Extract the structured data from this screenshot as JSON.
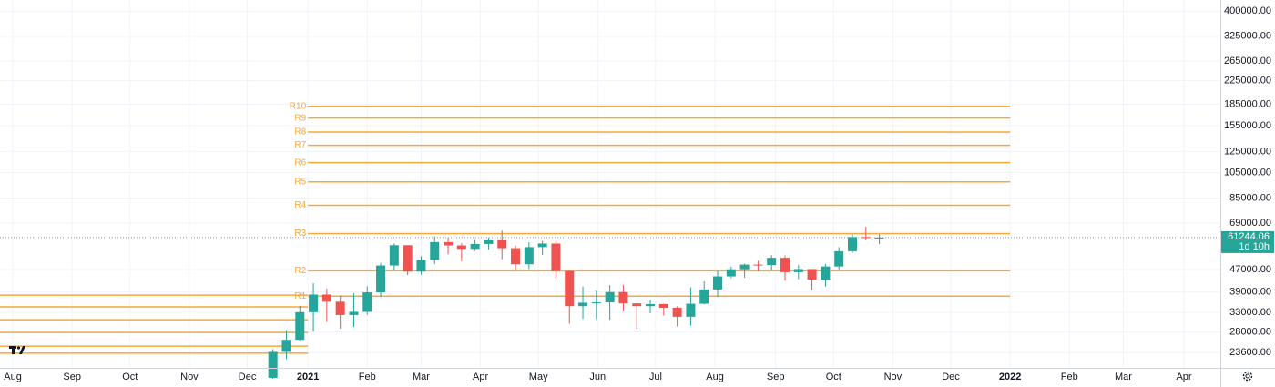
{
  "chart_data": {
    "type": "candlestick",
    "log_scale": true,
    "grid": true,
    "up_color": "#26a69a",
    "down_color": "#ef5350",
    "pivot_color": "#f6a83c",
    "ylim": [
      20800,
      439000
    ],
    "yticks": [
      {
        "value": 400000,
        "label": "400000.00"
      },
      {
        "value": 325000,
        "label": "325000.00"
      },
      {
        "value": 265000,
        "label": "265000.00"
      },
      {
        "value": 225000,
        "label": "225000.00"
      },
      {
        "value": 185000,
        "label": "185000.00"
      },
      {
        "value": 155000,
        "label": "155000.00"
      },
      {
        "value": 125000,
        "label": "125000.00"
      },
      {
        "value": 105000,
        "label": "105000.00"
      },
      {
        "value": 85000,
        "label": "85000.00"
      },
      {
        "value": 69000,
        "label": "69000.00"
      },
      {
        "value": 47000,
        "label": "47000.00"
      },
      {
        "value": 39000,
        "label": "39000.00"
      },
      {
        "value": 33000,
        "label": "33000.00"
      },
      {
        "value": 28000,
        "label": "28000.00"
      },
      {
        "value": 23600,
        "label": "23600.00"
      }
    ],
    "xlim": [
      -0.95,
      89.6
    ],
    "xticks": [
      {
        "value": 0,
        "label": "Aug"
      },
      {
        "value": 4.4,
        "label": "Sep"
      },
      {
        "value": 8.7,
        "label": "Oct"
      },
      {
        "value": 13.1,
        "label": "Nov"
      },
      {
        "value": 17.4,
        "label": "Dec"
      },
      {
        "value": 21.9,
        "label": "2021"
      },
      {
        "value": 26.3,
        "label": "Feb"
      },
      {
        "value": 30.3,
        "label": "Mar"
      },
      {
        "value": 34.7,
        "label": "Apr"
      },
      {
        "value": 39,
        "label": "May"
      },
      {
        "value": 43.4,
        "label": "Jun"
      },
      {
        "value": 47.7,
        "label": "Jul"
      },
      {
        "value": 52.1,
        "label": "Aug"
      },
      {
        "value": 56.6,
        "label": "Sep"
      },
      {
        "value": 60.9,
        "label": "Oct"
      },
      {
        "value": 65.3,
        "label": "Nov"
      },
      {
        "value": 69.6,
        "label": "Dec"
      },
      {
        "value": 74,
        "label": "2022"
      },
      {
        "value": 78.4,
        "label": "Feb"
      },
      {
        "value": 82.4,
        "label": "Mar"
      },
      {
        "value": 86.9,
        "label": "Apr"
      }
    ],
    "x": [
      19.3,
      20.3,
      21.3,
      22.3,
      23.3,
      24.3,
      25.3,
      26.3,
      27.3,
      28.3,
      29.3,
      30.3,
      31.3,
      32.3,
      33.3,
      34.3,
      35.3,
      36.3,
      37.3,
      38.3,
      39.3,
      40.3,
      41.3,
      42.3,
      43.3,
      44.3,
      45.3,
      46.3,
      47.3,
      48.3,
      49.3,
      50.3,
      51.3,
      52.3,
      53.3,
      54.3,
      55.3,
      56.3,
      57.3,
      58.3,
      59.3,
      60.3,
      61.3,
      62.3,
      63.3,
      64.3
    ],
    "open": [
      19150,
      23750,
      26250,
      33000,
      38200,
      36000,
      32250,
      33100,
      38900,
      48600,
      57500,
      46200,
      50900,
      59000,
      57400,
      55800,
      58100,
      59900,
      56100,
      49100,
      56600,
      58300,
      46400,
      34700,
      35700,
      35800,
      39000,
      35500,
      34700,
      35300,
      34240,
      31780,
      35400,
      39850,
      44400,
      47100,
      48950,
      48800,
      51800,
      46000,
      47200,
      43200,
      48200,
      54700,
      61500,
      61000
    ],
    "high": [
      24300,
      28400,
      34800,
      41950,
      40100,
      37850,
      38600,
      40900,
      49700,
      58350,
      57500,
      52600,
      61800,
      61200,
      58400,
      60100,
      61300,
      64900,
      57400,
      58900,
      59600,
      59600,
      46600,
      40800,
      39500,
      41300,
      41400,
      35600,
      36600,
      35400,
      34650,
      40550,
      42600,
      46500,
      48100,
      49400,
      50500,
      52900,
      52800,
      48800,
      47200,
      49200,
      56600,
      62900,
      67000,
      63000
    ],
    "low": [
      19000,
      22350,
      26000,
      28100,
      30420,
      28800,
      29200,
      32300,
      37400,
      47000,
      44900,
      45000,
      49200,
      53300,
      50400,
      54900,
      55500,
      51200,
      47000,
      47200,
      53000,
      43800,
      30000,
      31200,
      31100,
      31000,
      33300,
      28800,
      32700,
      32100,
      29300,
      29500,
      35200,
      37400,
      43800,
      43900,
      46400,
      46600,
      42800,
      43400,
      39600,
      40800,
      47100,
      53900,
      59800,
      58000
    ],
    "close": [
      23750,
      26250,
      33000,
      38200,
      36000,
      32250,
      33100,
      38900,
      48600,
      57500,
      46200,
      50900,
      59000,
      57400,
      55800,
      58100,
      59900,
      56100,
      49100,
      56600,
      58300,
      46400,
      34700,
      35700,
      35800,
      39000,
      35500,
      34700,
      35300,
      34240,
      31780,
      35400,
      39850,
      44400,
      47100,
      48950,
      48800,
      51800,
      46000,
      47200,
      43200,
      48200,
      54700,
      61500,
      61000,
      61244.06
    ],
    "pivot_sets": [
      {
        "from": -1,
        "to": 21.9,
        "levels": [
          38000,
          34500,
          31000,
          27900,
          24900,
          23500
        ]
      },
      {
        "from": 21.9,
        "to": 74,
        "labels": [
          "R10",
          "R9",
          "R8",
          "R7",
          "R6",
          "R5",
          "R4",
          "R3",
          "R2",
          "R1"
        ],
        "levels": [
          181800,
          165000,
          147000,
          131600,
          114000,
          97200,
          80000,
          63300,
          46500,
          37700
        ]
      }
    ],
    "last_price": 61244.06,
    "countdown": "1d 10h"
  }
}
